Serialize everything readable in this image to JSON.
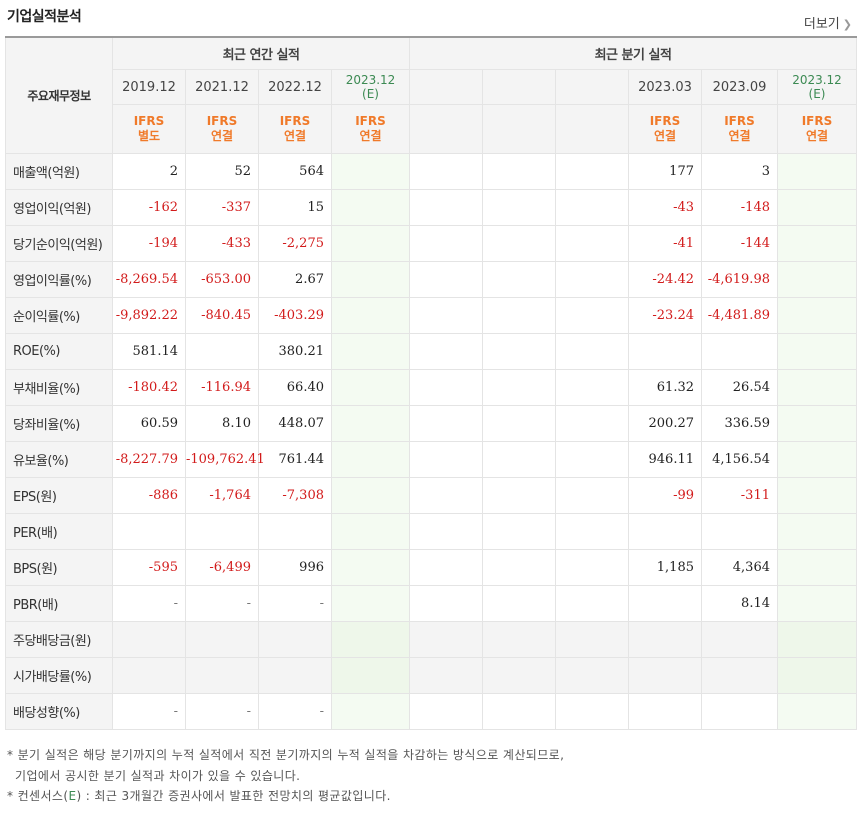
{
  "header": {
    "title": "기업실적분석",
    "more_label": "더보기",
    "more_icon": "chevron-right-icon"
  },
  "table": {
    "corner_label": "주요재무정보",
    "groups": {
      "annual": "최근 연간 실적",
      "quarter": "최근 분기 실적"
    },
    "annual_periods": [
      {
        "label": "2019.12",
        "est": false,
        "ifrs": "IFRS",
        "basis": "별도"
      },
      {
        "label": "2021.12",
        "est": false,
        "ifrs": "IFRS",
        "basis": "연결"
      },
      {
        "label": "2022.12",
        "est": false,
        "ifrs": "IFRS",
        "basis": "연결"
      },
      {
        "label": "2023.12",
        "est_mark": "(E)",
        "est": true,
        "ifrs": "IFRS",
        "basis": "연결"
      }
    ],
    "quarter_periods": [
      {
        "label": "",
        "est": false,
        "ifrs": "",
        "basis": ""
      },
      {
        "label": "",
        "est": false,
        "ifrs": "",
        "basis": ""
      },
      {
        "label": "",
        "est": false,
        "ifrs": "",
        "basis": ""
      },
      {
        "label": "2023.03",
        "est": false,
        "ifrs": "IFRS",
        "basis": "연결"
      },
      {
        "label": "2023.09",
        "est": false,
        "ifrs": "IFRS",
        "basis": "연결"
      },
      {
        "label": "2023.12",
        "est_mark": "(E)",
        "est": true,
        "ifrs": "IFRS",
        "basis": "연결"
      }
    ],
    "rows": [
      {
        "label": "매출액(억원)",
        "sep": false,
        "values": [
          "2",
          "52",
          "564",
          "",
          "",
          "",
          "",
          "177",
          "3",
          ""
        ]
      },
      {
        "label": "영업이익(억원)",
        "sep": false,
        "values": [
          "-162",
          "-337",
          "15",
          "",
          "",
          "",
          "",
          "-43",
          "-148",
          ""
        ]
      },
      {
        "label": "당기순이익(억원)",
        "sep": false,
        "values": [
          "-194",
          "-433",
          "-2,275",
          "",
          "",
          "",
          "",
          "-41",
          "-144",
          ""
        ]
      },
      {
        "label": "영업이익률(%)",
        "sep": true,
        "values": [
          "-8,269.54",
          "-653.00",
          "2.67",
          "",
          "",
          "",
          "",
          "-24.42",
          "-4,619.98",
          ""
        ]
      },
      {
        "label": "순이익률(%)",
        "sep": false,
        "values": [
          "-9,892.22",
          "-840.45",
          "-403.29",
          "",
          "",
          "",
          "",
          "-23.24",
          "-4,481.89",
          ""
        ]
      },
      {
        "label": "ROE(%)",
        "sep": false,
        "values": [
          "581.14",
          "",
          "380.21",
          "",
          "",
          "",
          "",
          "",
          "",
          ""
        ]
      },
      {
        "label": "부채비율(%)",
        "sep": true,
        "values": [
          "-180.42",
          "-116.94",
          "66.40",
          "",
          "",
          "",
          "",
          "61.32",
          "26.54",
          ""
        ]
      },
      {
        "label": "당좌비율(%)",
        "sep": false,
        "values": [
          "60.59",
          "8.10",
          "448.07",
          "",
          "",
          "",
          "",
          "200.27",
          "336.59",
          ""
        ]
      },
      {
        "label": "유보율(%)",
        "sep": false,
        "values": [
          "-8,227.79",
          "-109,762.41",
          "761.44",
          "",
          "",
          "",
          "",
          "946.11",
          "4,156.54",
          ""
        ]
      },
      {
        "label": "EPS(원)",
        "sep": true,
        "values": [
          "-886",
          "-1,764",
          "-7,308",
          "",
          "",
          "",
          "",
          "-99",
          "-311",
          ""
        ]
      },
      {
        "label": "PER(배)",
        "sep": false,
        "values": [
          "",
          "",
          "",
          "",
          "",
          "",
          "",
          "",
          "",
          ""
        ]
      },
      {
        "label": "BPS(원)",
        "sep": false,
        "values": [
          "-595",
          "-6,499",
          "996",
          "",
          "",
          "",
          "",
          "1,185",
          "4,364",
          ""
        ]
      },
      {
        "label": "PBR(배)",
        "sep": false,
        "values": [
          "-",
          "-",
          "-",
          "",
          "",
          "",
          "",
          "",
          "8.14",
          ""
        ]
      },
      {
        "label": "주당배당금(원)",
        "sep": true,
        "blank": true,
        "values": [
          "",
          "",
          "",
          "",
          "",
          "",
          "",
          "",
          "",
          ""
        ]
      },
      {
        "label": "시가배당률(%)",
        "sep": false,
        "blank": true,
        "values": [
          "",
          "",
          "",
          "",
          "",
          "",
          "",
          "",
          "",
          ""
        ]
      },
      {
        "label": "배당성향(%)",
        "sep": false,
        "values": [
          "-",
          "-",
          "-",
          "",
          "",
          "",
          "",
          "",
          "",
          ""
        ]
      }
    ]
  },
  "notes": {
    "line1": "* 분기 실적은 해당 분기까지의 누적 실적에서 직전 분기까지의 누적 실적을 차감하는 방식으로 계산되므로,",
    "line2": "기업에서 공시한 분기 실적과 차이가 있을 수 있습니다.",
    "line3_prefix": "* 컨센서스(",
    "line3_mark": "E",
    "line3_suffix": ") : 최근 3개월간 증권사에서 발표한 전망치의 평균값입니다."
  },
  "colors": {
    "negative": "#d21b1b",
    "ifrs": "#f07a2a",
    "estimate": "#3c8a53",
    "estimate_bg": "#f4fbf2"
  }
}
